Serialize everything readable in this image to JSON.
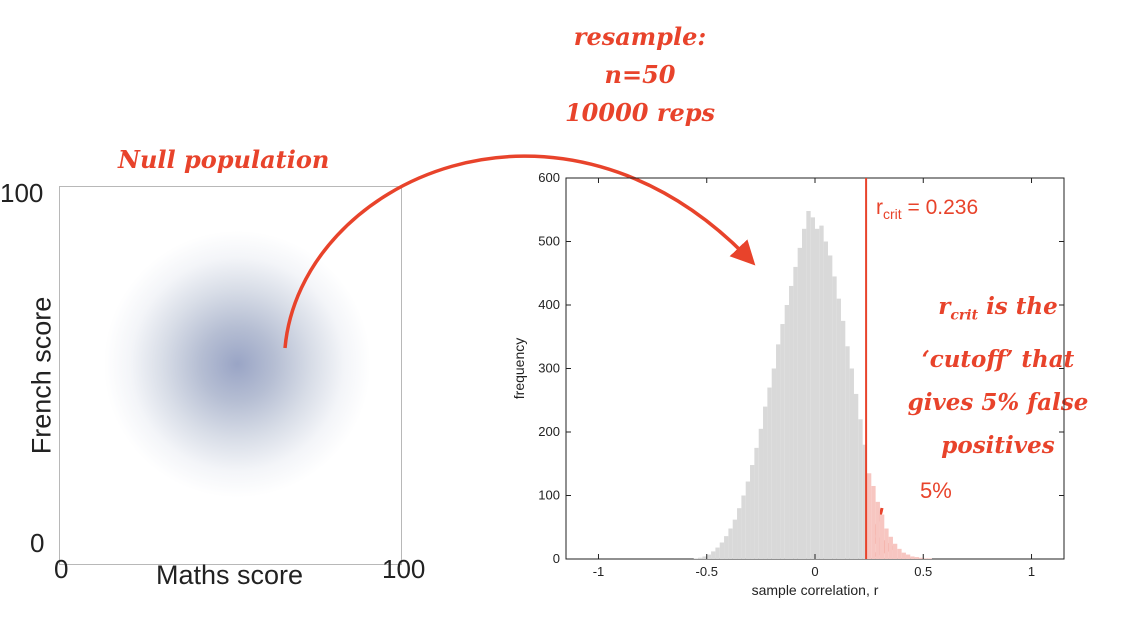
{
  "annotations": {
    "resample_line1": "resample:",
    "resample_line2": "n=50",
    "resample_line3": "10000 reps",
    "null_population": "Null population",
    "rcrit_desc_line1_main": "r",
    "rcrit_desc_line1_sub": "crit",
    "rcrit_desc_line1_rest": " is the",
    "rcrit_desc_line2": "‘cutoff’ that",
    "rcrit_desc_line3": "gives 5% false",
    "rcrit_desc_line4": "positives",
    "five_percent": "5%",
    "rcrit_label_main": "r",
    "rcrit_label_sub": "crit",
    "rcrit_label_rest": " = 0.236"
  },
  "scatter": {
    "xlabel": "Maths score",
    "ylabel": "French score",
    "x_min_label": "0",
    "x_max_label": "100",
    "y_min_label": "0",
    "y_max_label": "100"
  },
  "colors": {
    "accent": "#e8432b",
    "hist_bar": "#d9d9d9",
    "hist_bar_tail": "#f7c6c1",
    "cloud": "#5566a0"
  },
  "chart_data": {
    "type": "bar",
    "title": "",
    "xlabel": "sample correlation, r",
    "ylabel": "frequency",
    "xlim": [
      -1.15,
      1.15
    ],
    "ylim": [
      0,
      600
    ],
    "xticks": [
      -1,
      -0.5,
      0,
      0.5,
      1
    ],
    "xtick_labels": [
      "-1",
      "-0.5",
      "0",
      "0.5",
      "1"
    ],
    "yticks": [
      0,
      100,
      200,
      300,
      400,
      500,
      600
    ],
    "ytick_labels": [
      "0",
      "100",
      "200",
      "300",
      "400",
      "500",
      "600"
    ],
    "bin_width": 0.02,
    "bin_centers": [
      -0.55,
      -0.53,
      -0.51,
      -0.49,
      -0.47,
      -0.45,
      -0.43,
      -0.41,
      -0.39,
      -0.37,
      -0.35,
      -0.33,
      -0.31,
      -0.29,
      -0.27,
      -0.25,
      -0.23,
      -0.21,
      -0.19,
      -0.17,
      -0.15,
      -0.13,
      -0.11,
      -0.09,
      -0.07,
      -0.05,
      -0.03,
      -0.01,
      0.01,
      0.03,
      0.05,
      0.07,
      0.09,
      0.11,
      0.13,
      0.15,
      0.17,
      0.19,
      0.21,
      0.23,
      0.25,
      0.27,
      0.29,
      0.31,
      0.33,
      0.35,
      0.37,
      0.39,
      0.41,
      0.43,
      0.45,
      0.47,
      0.49,
      0.51,
      0.53
    ],
    "counts": [
      1,
      2,
      4,
      7,
      12,
      18,
      26,
      36,
      48,
      62,
      80,
      100,
      122,
      148,
      175,
      205,
      240,
      270,
      300,
      338,
      370,
      400,
      430,
      460,
      490,
      520,
      548,
      538,
      520,
      525,
      500,
      478,
      445,
      410,
      375,
      335,
      300,
      260,
      220,
      180,
      135,
      115,
      90,
      70,
      48,
      35,
      24,
      16,
      10,
      7,
      4,
      3,
      2,
      1,
      1
    ],
    "critical_value": 0.236,
    "tail_percent": "5%"
  }
}
